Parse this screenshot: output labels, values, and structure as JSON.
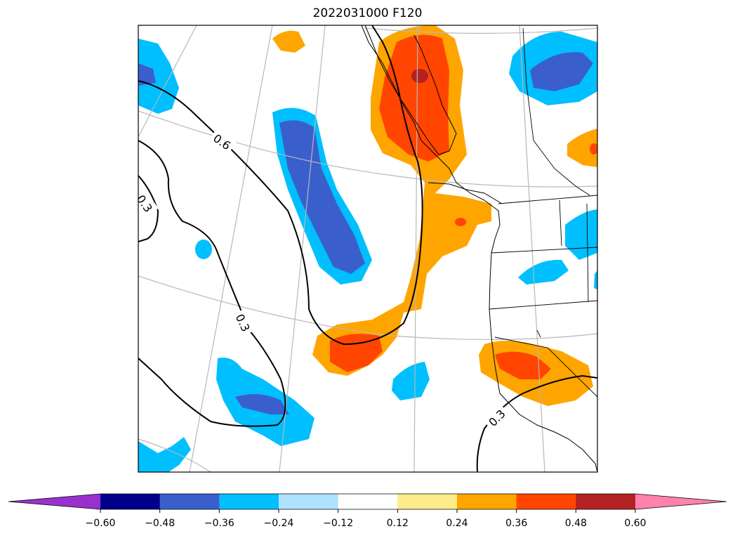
{
  "title": "2022031000 F120",
  "map": {
    "projection": "lambert-conformal",
    "region": "North Pacific / Pacific Northwest",
    "gridlines": true,
    "coastlines": true,
    "borders": true
  },
  "contours": [
    {
      "label": "0.6",
      "color": "#000000"
    },
    {
      "label": "0.3",
      "color": "#000000"
    },
    {
      "label": "0.3",
      "color": "#000000"
    },
    {
      "label": "0.3",
      "color": "#000000"
    }
  ],
  "colorbar": {
    "extend": "both",
    "levels": [
      "-0.60",
      "-0.48",
      "-0.36",
      "-0.24",
      "-0.12",
      "0.12",
      "0.24",
      "0.36",
      "0.48",
      "0.60"
    ],
    "tick_labels": [
      "−0.60",
      "−0.48",
      "−0.36",
      "−0.24",
      "−0.12",
      "0.12",
      "0.24",
      "0.36",
      "0.48",
      "0.60"
    ],
    "colors": [
      "#9932CC",
      "#00008B",
      "#3A5FCD",
      "#00BFFF",
      "#B0E2FF",
      "#FFFFFF",
      "#FFEC8B",
      "#FFA500",
      "#FF4500",
      "#B22222",
      "#FF82AB"
    ]
  }
}
